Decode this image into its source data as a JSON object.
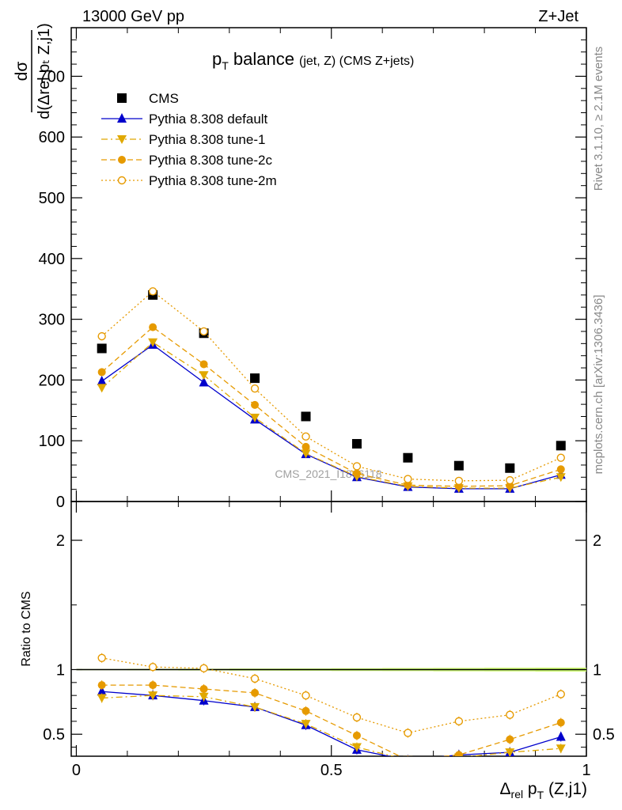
{
  "header": {
    "left": "13000 GeV pp",
    "right": "Z+Jet"
  },
  "side_text": {
    "rivet": "Rivet 3.1.10, ≥ 2.1M events",
    "mcplots": "mcplots.cern.ch [arXiv:1306.3436]"
  },
  "chart_data": {
    "type": "line",
    "title": "pₜ balance",
    "title_main": "p",
    "title_sub": "T",
    "title_rest": " balance",
    "title_suffix": "(jet, Z) (CMS Z+jets)",
    "watermark": "CMS_2021_I1866118",
    "ylabel_top": "dσ",
    "ylabel_bottom": "d(Δrel pₜ Z,j1)",
    "ratio_ylabel": "Ratio to CMS",
    "xlabel": "Δrel pₜ (Z,j1)",
    "xlabel_delta": "Δ",
    "xlabel_rel": "rel",
    "xlabel_p": " p",
    "xlabel_T": "T",
    "xlabel_rest": " (Z,j1)",
    "xlim": [
      -0.01,
      1.0
    ],
    "ylim": [
      0,
      780
    ],
    "ratio_ylim": [
      0.33,
      2.3
    ],
    "x_ticks": [
      0,
      0.5,
      1
    ],
    "x_tick_labels": [
      "0",
      "0.5",
      "1"
    ],
    "y_ticks": [
      0,
      100,
      200,
      300,
      400,
      500,
      600,
      700
    ],
    "y_tick_labels": [
      "0",
      "100",
      "200",
      "300",
      "400",
      "500",
      "600",
      "700"
    ],
    "ratio_ticks": [
      0.5,
      1,
      2
    ],
    "ratio_tick_labels": [
      "0.5",
      "1",
      "2"
    ],
    "x": [
      0.05,
      0.15,
      0.25,
      0.35,
      0.45,
      0.55,
      0.65,
      0.75,
      0.85,
      0.95
    ],
    "series": [
      {
        "name": "CMS",
        "style": "data",
        "color": "#000000",
        "values": [
          252,
          340,
          277,
          203,
          140,
          95,
          72,
          59,
          55,
          92
        ]
      },
      {
        "name": "Pythia 8.308 default",
        "style": "solid-triangle",
        "color": "#0000cc",
        "values": [
          198,
          258,
          196,
          135,
          78,
          40,
          24,
          21,
          21,
          44
        ]
      },
      {
        "name": "Pythia 8.308 tune-1",
        "style": "dashdot-triangledown",
        "color": "#e0a800",
        "values": [
          187,
          262,
          208,
          138,
          79,
          41,
          25,
          22,
          22,
          40
        ]
      },
      {
        "name": "Pythia 8.308 tune-2c",
        "style": "dashed-circle",
        "color": "#e69a00",
        "values": [
          213,
          287,
          226,
          159,
          90,
          46,
          27,
          25,
          26,
          53
        ]
      },
      {
        "name": "Pythia 8.308 tune-2m",
        "style": "dotted-opencircle",
        "color": "#e69a00",
        "values": [
          272,
          346,
          280,
          186,
          107,
          58,
          37,
          34,
          35,
          72
        ]
      }
    ],
    "ratio_series": [
      {
        "name": "Pythia 8.308 default",
        "values": [
          0.83,
          0.8,
          0.76,
          0.71,
          0.57,
          0.38,
          0.3,
          0.34,
          0.36,
          0.48
        ]
      },
      {
        "name": "Pythia 8.308 tune-1",
        "values": [
          0.78,
          0.8,
          0.79,
          0.71,
          0.58,
          0.4,
          0.3,
          0.32,
          0.36,
          0.39
        ]
      },
      {
        "name": "Pythia 8.308 tune-2c",
        "values": [
          0.88,
          0.88,
          0.85,
          0.82,
          0.68,
          0.49,
          0.3,
          0.34,
          0.46,
          0.59
        ]
      },
      {
        "name": "Pythia 8.308 tune-2m",
        "values": [
          1.09,
          1.02,
          1.01,
          0.93,
          0.8,
          0.63,
          0.51,
          0.6,
          0.65,
          0.81
        ]
      }
    ],
    "legend": "top-left",
    "grid": false
  }
}
